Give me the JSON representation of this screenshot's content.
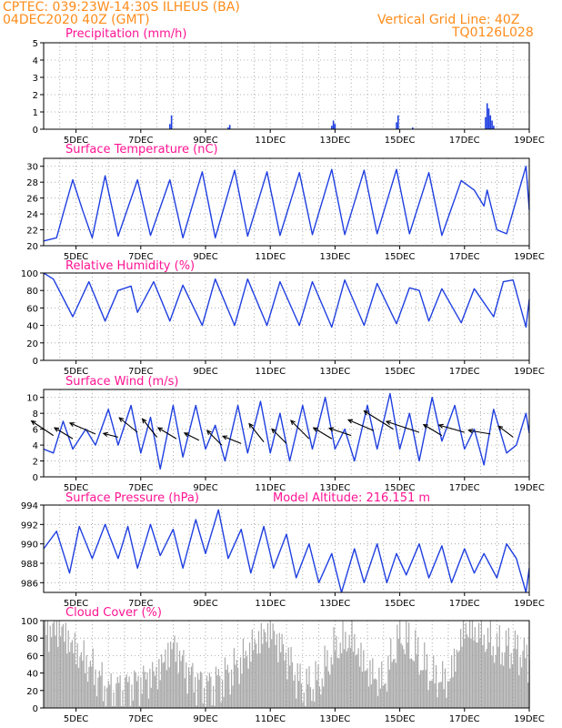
{
  "header": {
    "line1": "CPTEC:  039:23W-14:30S  ILHEUS (BA)",
    "line2": "04DEC2020 40Z (GMT)",
    "right1": "Vertical Grid Line: 40Z",
    "right2": "TQ0126L028"
  },
  "colors": {
    "header": "#ff8c1a",
    "panel_title": "#ff1493",
    "series": "#1f3fe0",
    "cloud_bar": "#a9a9a9",
    "grid": "#9a9a9a",
    "arrow": "#000000"
  },
  "chart_data": [
    {
      "type": "bar",
      "title": "Precipitation (mm/h)",
      "ylim": [
        0,
        5
      ],
      "yticks": [
        "0",
        "1",
        "2",
        "3",
        "4",
        "5"
      ],
      "xticks": [
        "5DEC",
        "7DEC",
        "9DEC",
        "11DEC",
        "13DEC",
        "15DEC",
        "17DEC",
        "19DEC"
      ],
      "x": [
        7.9,
        7.95,
        9.7,
        9.75,
        12.9,
        12.95,
        13.0,
        14.9,
        14.95,
        15.4,
        17.65,
        17.7,
        17.75,
        17.8,
        17.85,
        17.9
      ],
      "values": [
        0.3,
        0.8,
        0.1,
        0.25,
        0.2,
        0.5,
        0.3,
        0.4,
        0.8,
        0.1,
        0.7,
        1.5,
        1.2,
        0.8,
        0.5,
        0.2
      ]
    },
    {
      "type": "line",
      "title": "Surface Temperature (nC)",
      "ylim": [
        20,
        31
      ],
      "yticks": [
        "20",
        "22",
        "24",
        "26",
        "28",
        "30"
      ],
      "xticks": [
        "5DEC",
        "7DEC",
        "9DEC",
        "11DEC",
        "13DEC",
        "15DEC",
        "17DEC",
        "19DEC"
      ],
      "series": [
        {
          "points": [
            [
              4.0,
              20.6
            ],
            [
              4.4,
              21.0
            ],
            [
              4.6,
              24.0
            ],
            [
              4.9,
              28.3
            ],
            [
              5.2,
              24.5
            ],
            [
              5.5,
              21.0
            ],
            [
              5.9,
              28.8
            ],
            [
              6.3,
              21.2
            ],
            [
              6.9,
              28.3
            ],
            [
              7.3,
              21.3
            ],
            [
              7.9,
              28.3
            ],
            [
              8.3,
              21.0
            ],
            [
              8.9,
              29.3
            ],
            [
              9.3,
              21.0
            ],
            [
              9.9,
              29.5
            ],
            [
              10.3,
              21.2
            ],
            [
              10.9,
              29.3
            ],
            [
              11.3,
              21.3
            ],
            [
              11.9,
              29.2
            ],
            [
              12.3,
              21.4
            ],
            [
              12.9,
              29.6
            ],
            [
              13.3,
              21.4
            ],
            [
              13.9,
              29.5
            ],
            [
              14.3,
              21.5
            ],
            [
              14.9,
              29.6
            ],
            [
              15.3,
              21.5
            ],
            [
              15.9,
              29.2
            ],
            [
              16.3,
              21.3
            ],
            [
              16.9,
              28.2
            ],
            [
              17.3,
              27.0
            ],
            [
              17.6,
              25.0
            ],
            [
              17.7,
              27.0
            ],
            [
              18.0,
              22.0
            ],
            [
              18.3,
              21.5
            ],
            [
              18.9,
              30.0
            ],
            [
              19.0,
              24.5
            ]
          ]
        }
      ]
    },
    {
      "type": "line",
      "title": "Relative Humidity (%)",
      "ylim": [
        0,
        100
      ],
      "yticks": [
        "0",
        "20",
        "40",
        "60",
        "80",
        "100"
      ],
      "xticks": [
        "5DEC",
        "7DEC",
        "9DEC",
        "11DEC",
        "13DEC",
        "15DEC",
        "17DEC",
        "19DEC"
      ],
      "series": [
        {
          "points": [
            [
              4.0,
              100
            ],
            [
              4.3,
              93
            ],
            [
              4.9,
              50
            ],
            [
              5.4,
              90
            ],
            [
              5.9,
              45
            ],
            [
              6.3,
              80
            ],
            [
              6.7,
              85
            ],
            [
              6.9,
              55
            ],
            [
              7.4,
              90
            ],
            [
              7.9,
              45
            ],
            [
              8.3,
              86
            ],
            [
              8.9,
              40
            ],
            [
              9.3,
              93
            ],
            [
              9.9,
              40
            ],
            [
              10.3,
              93
            ],
            [
              10.9,
              40
            ],
            [
              11.3,
              90
            ],
            [
              11.9,
              40
            ],
            [
              12.3,
              90
            ],
            [
              12.9,
              38
            ],
            [
              13.3,
              92
            ],
            [
              13.9,
              40
            ],
            [
              14.3,
              88
            ],
            [
              14.9,
              42
            ],
            [
              15.3,
              83
            ],
            [
              15.6,
              80
            ],
            [
              15.9,
              45
            ],
            [
              16.3,
              82
            ],
            [
              16.9,
              43
            ],
            [
              17.3,
              82
            ],
            [
              17.9,
              50
            ],
            [
              18.2,
              90
            ],
            [
              18.5,
              92
            ],
            [
              18.9,
              38
            ],
            [
              19.0,
              70
            ]
          ]
        }
      ]
    },
    {
      "type": "line",
      "title": "Surface Wind (m/s)",
      "ylim": [
        0,
        11
      ],
      "yticks": [
        "0",
        "2",
        "4",
        "6",
        "8",
        "10"
      ],
      "xticks": [
        "5DEC",
        "7DEC",
        "9DEC",
        "11DEC",
        "13DEC",
        "15DEC",
        "17DEC",
        "19DEC"
      ],
      "series": [
        {
          "points": [
            [
              4.0,
              3.5
            ],
            [
              4.3,
              3.0
            ],
            [
              4.6,
              7.0
            ],
            [
              4.9,
              3.5
            ],
            [
              5.3,
              6.0
            ],
            [
              5.6,
              4.0
            ],
            [
              6.0,
              8.5
            ],
            [
              6.3,
              4.0
            ],
            [
              6.7,
              9.0
            ],
            [
              7.0,
              3.0
            ],
            [
              7.3,
              7.5
            ],
            [
              7.6,
              1.0
            ],
            [
              8.0,
              9.0
            ],
            [
              8.3,
              2.5
            ],
            [
              8.7,
              9.0
            ],
            [
              9.0,
              3.5
            ],
            [
              9.3,
              6.5
            ],
            [
              9.6,
              2.0
            ],
            [
              10.0,
              9.0
            ],
            [
              10.3,
              3.0
            ],
            [
              10.7,
              9.5
            ],
            [
              11.0,
              3.0
            ],
            [
              11.3,
              8.0
            ],
            [
              11.6,
              2.0
            ],
            [
              12.0,
              9.0
            ],
            [
              12.3,
              3.5
            ],
            [
              12.7,
              10.0
            ],
            [
              13.0,
              3.5
            ],
            [
              13.3,
              6.0
            ],
            [
              13.6,
              2.0
            ],
            [
              14.0,
              9.0
            ],
            [
              14.3,
              3.5
            ],
            [
              14.7,
              10.5
            ],
            [
              15.0,
              3.5
            ],
            [
              15.3,
              8.0
            ],
            [
              15.6,
              2.0
            ],
            [
              16.0,
              10.0
            ],
            [
              16.3,
              4.5
            ],
            [
              16.7,
              9.0
            ],
            [
              17.0,
              3.5
            ],
            [
              17.3,
              6.0
            ],
            [
              17.6,
              1.5
            ],
            [
              17.9,
              8.5
            ],
            [
              18.3,
              3.0
            ],
            [
              18.6,
              4.0
            ],
            [
              18.9,
              8.0
            ],
            [
              19.0,
              5.5
            ]
          ]
        }
      ],
      "arrows": [
        [
          4.3,
          5.2,
          -0.6,
          0.4
        ],
        [
          4.9,
          4.8,
          -0.5,
          0.3
        ],
        [
          5.6,
          5.4,
          -0.7,
          0.3
        ],
        [
          6.3,
          5.0,
          -0.4,
          0.1
        ],
        [
          6.9,
          5.6,
          -0.5,
          0.4
        ],
        [
          7.5,
          5.0,
          -0.4,
          0.5
        ],
        [
          8.1,
          4.8,
          -0.5,
          0.3
        ],
        [
          8.8,
          4.6,
          -0.4,
          0.2
        ],
        [
          9.5,
          4.0,
          -0.4,
          0.4
        ],
        [
          10.1,
          4.2,
          -0.5,
          0.2
        ],
        [
          10.8,
          4.4,
          -0.4,
          0.5
        ],
        [
          11.5,
          4.2,
          -0.4,
          0.4
        ],
        [
          12.2,
          4.8,
          -0.5,
          0.5
        ],
        [
          12.9,
          4.8,
          -0.5,
          0.3
        ],
        [
          13.5,
          5.2,
          -0.6,
          0.2
        ],
        [
          14.2,
          5.8,
          -0.7,
          0.3
        ],
        [
          14.8,
          6.0,
          -0.8,
          0.5
        ],
        [
          15.6,
          5.6,
          -0.9,
          0.3
        ],
        [
          16.3,
          5.2,
          -0.5,
          0.3
        ],
        [
          17.0,
          5.6,
          -0.7,
          0.2
        ],
        [
          17.8,
          5.4,
          -0.6,
          0.1
        ],
        [
          18.5,
          5.0,
          -0.4,
          0.3
        ]
      ]
    },
    {
      "type": "line",
      "title": "Surface Pressure (hPa)",
      "subtitle": "Model Altitude: 216.151 m",
      "ylim": [
        985,
        994
      ],
      "yticks": [
        "986",
        "988",
        "990",
        "992",
        "994"
      ],
      "xticks": [
        "5DEC",
        "7DEC",
        "9DEC",
        "11DEC",
        "13DEC",
        "15DEC",
        "17DEC",
        "19DEC"
      ],
      "series": [
        {
          "points": [
            [
              4.0,
              989.5
            ],
            [
              4.4,
              991.3
            ],
            [
              4.8,
              987.0
            ],
            [
              5.1,
              991.8
            ],
            [
              5.5,
              988.5
            ],
            [
              5.9,
              992.0
            ],
            [
              6.3,
              988.5
            ],
            [
              6.6,
              991.8
            ],
            [
              6.9,
              987.5
            ],
            [
              7.3,
              992.0
            ],
            [
              7.6,
              988.8
            ],
            [
              8.0,
              991.5
            ],
            [
              8.3,
              987.5
            ],
            [
              8.7,
              992.5
            ],
            [
              9.0,
              989.0
            ],
            [
              9.4,
              993.5
            ],
            [
              9.7,
              988.5
            ],
            [
              10.1,
              991.5
            ],
            [
              10.4,
              987.0
            ],
            [
              10.8,
              991.8
            ],
            [
              11.1,
              987.5
            ],
            [
              11.5,
              991.0
            ],
            [
              11.8,
              986.5
            ],
            [
              12.2,
              990.0
            ],
            [
              12.5,
              986.0
            ],
            [
              12.9,
              989.0
            ],
            [
              13.2,
              985.0
            ],
            [
              13.6,
              989.5
            ],
            [
              13.9,
              986.0
            ],
            [
              14.3,
              990.0
            ],
            [
              14.6,
              986.0
            ],
            [
              14.9,
              989.0
            ],
            [
              15.2,
              986.8
            ],
            [
              15.6,
              990.0
            ],
            [
              15.9,
              986.5
            ],
            [
              16.3,
              989.8
            ],
            [
              16.6,
              986.0
            ],
            [
              17.0,
              989.5
            ],
            [
              17.3,
              987.0
            ],
            [
              17.6,
              989.0
            ],
            [
              18.0,
              986.5
            ],
            [
              18.3,
              990.0
            ],
            [
              18.6,
              988.5
            ],
            [
              18.9,
              985.0
            ],
            [
              19.0,
              987.5
            ]
          ]
        }
      ]
    },
    {
      "type": "bar",
      "title": "Cloud Cover (%)",
      "ylim": [
        0,
        100
      ],
      "yticks": [
        "0",
        "20",
        "40",
        "60",
        "80",
        "100"
      ],
      "xticks": [
        "5DEC",
        "7DEC",
        "9DEC",
        "11DEC",
        "13DEC",
        "15DEC",
        "17DEC",
        "19DEC"
      ],
      "profile": [
        [
          4.0,
          88
        ],
        [
          4.5,
          92
        ],
        [
          5.0,
          65
        ],
        [
          5.5,
          45
        ],
        [
          6.0,
          18
        ],
        [
          6.5,
          22
        ],
        [
          7.0,
          30
        ],
        [
          7.5,
          40
        ],
        [
          8.0,
          72
        ],
        [
          8.5,
          38
        ],
        [
          9.0,
          22
        ],
        [
          9.5,
          32
        ],
        [
          10.0,
          48
        ],
        [
          10.5,
          72
        ],
        [
          11.0,
          90
        ],
        [
          11.5,
          60
        ],
        [
          12.0,
          22
        ],
        [
          12.5,
          30
        ],
        [
          13.0,
          68
        ],
        [
          13.5,
          80
        ],
        [
          14.0,
          42
        ],
        [
          14.5,
          28
        ],
        [
          15.0,
          85
        ],
        [
          15.5,
          62
        ],
        [
          16.0,
          35
        ],
        [
          16.5,
          30
        ],
        [
          17.0,
          92
        ],
        [
          17.5,
          85
        ],
        [
          18.0,
          68
        ],
        [
          18.5,
          68
        ],
        [
          19.0,
          55
        ]
      ]
    }
  ]
}
